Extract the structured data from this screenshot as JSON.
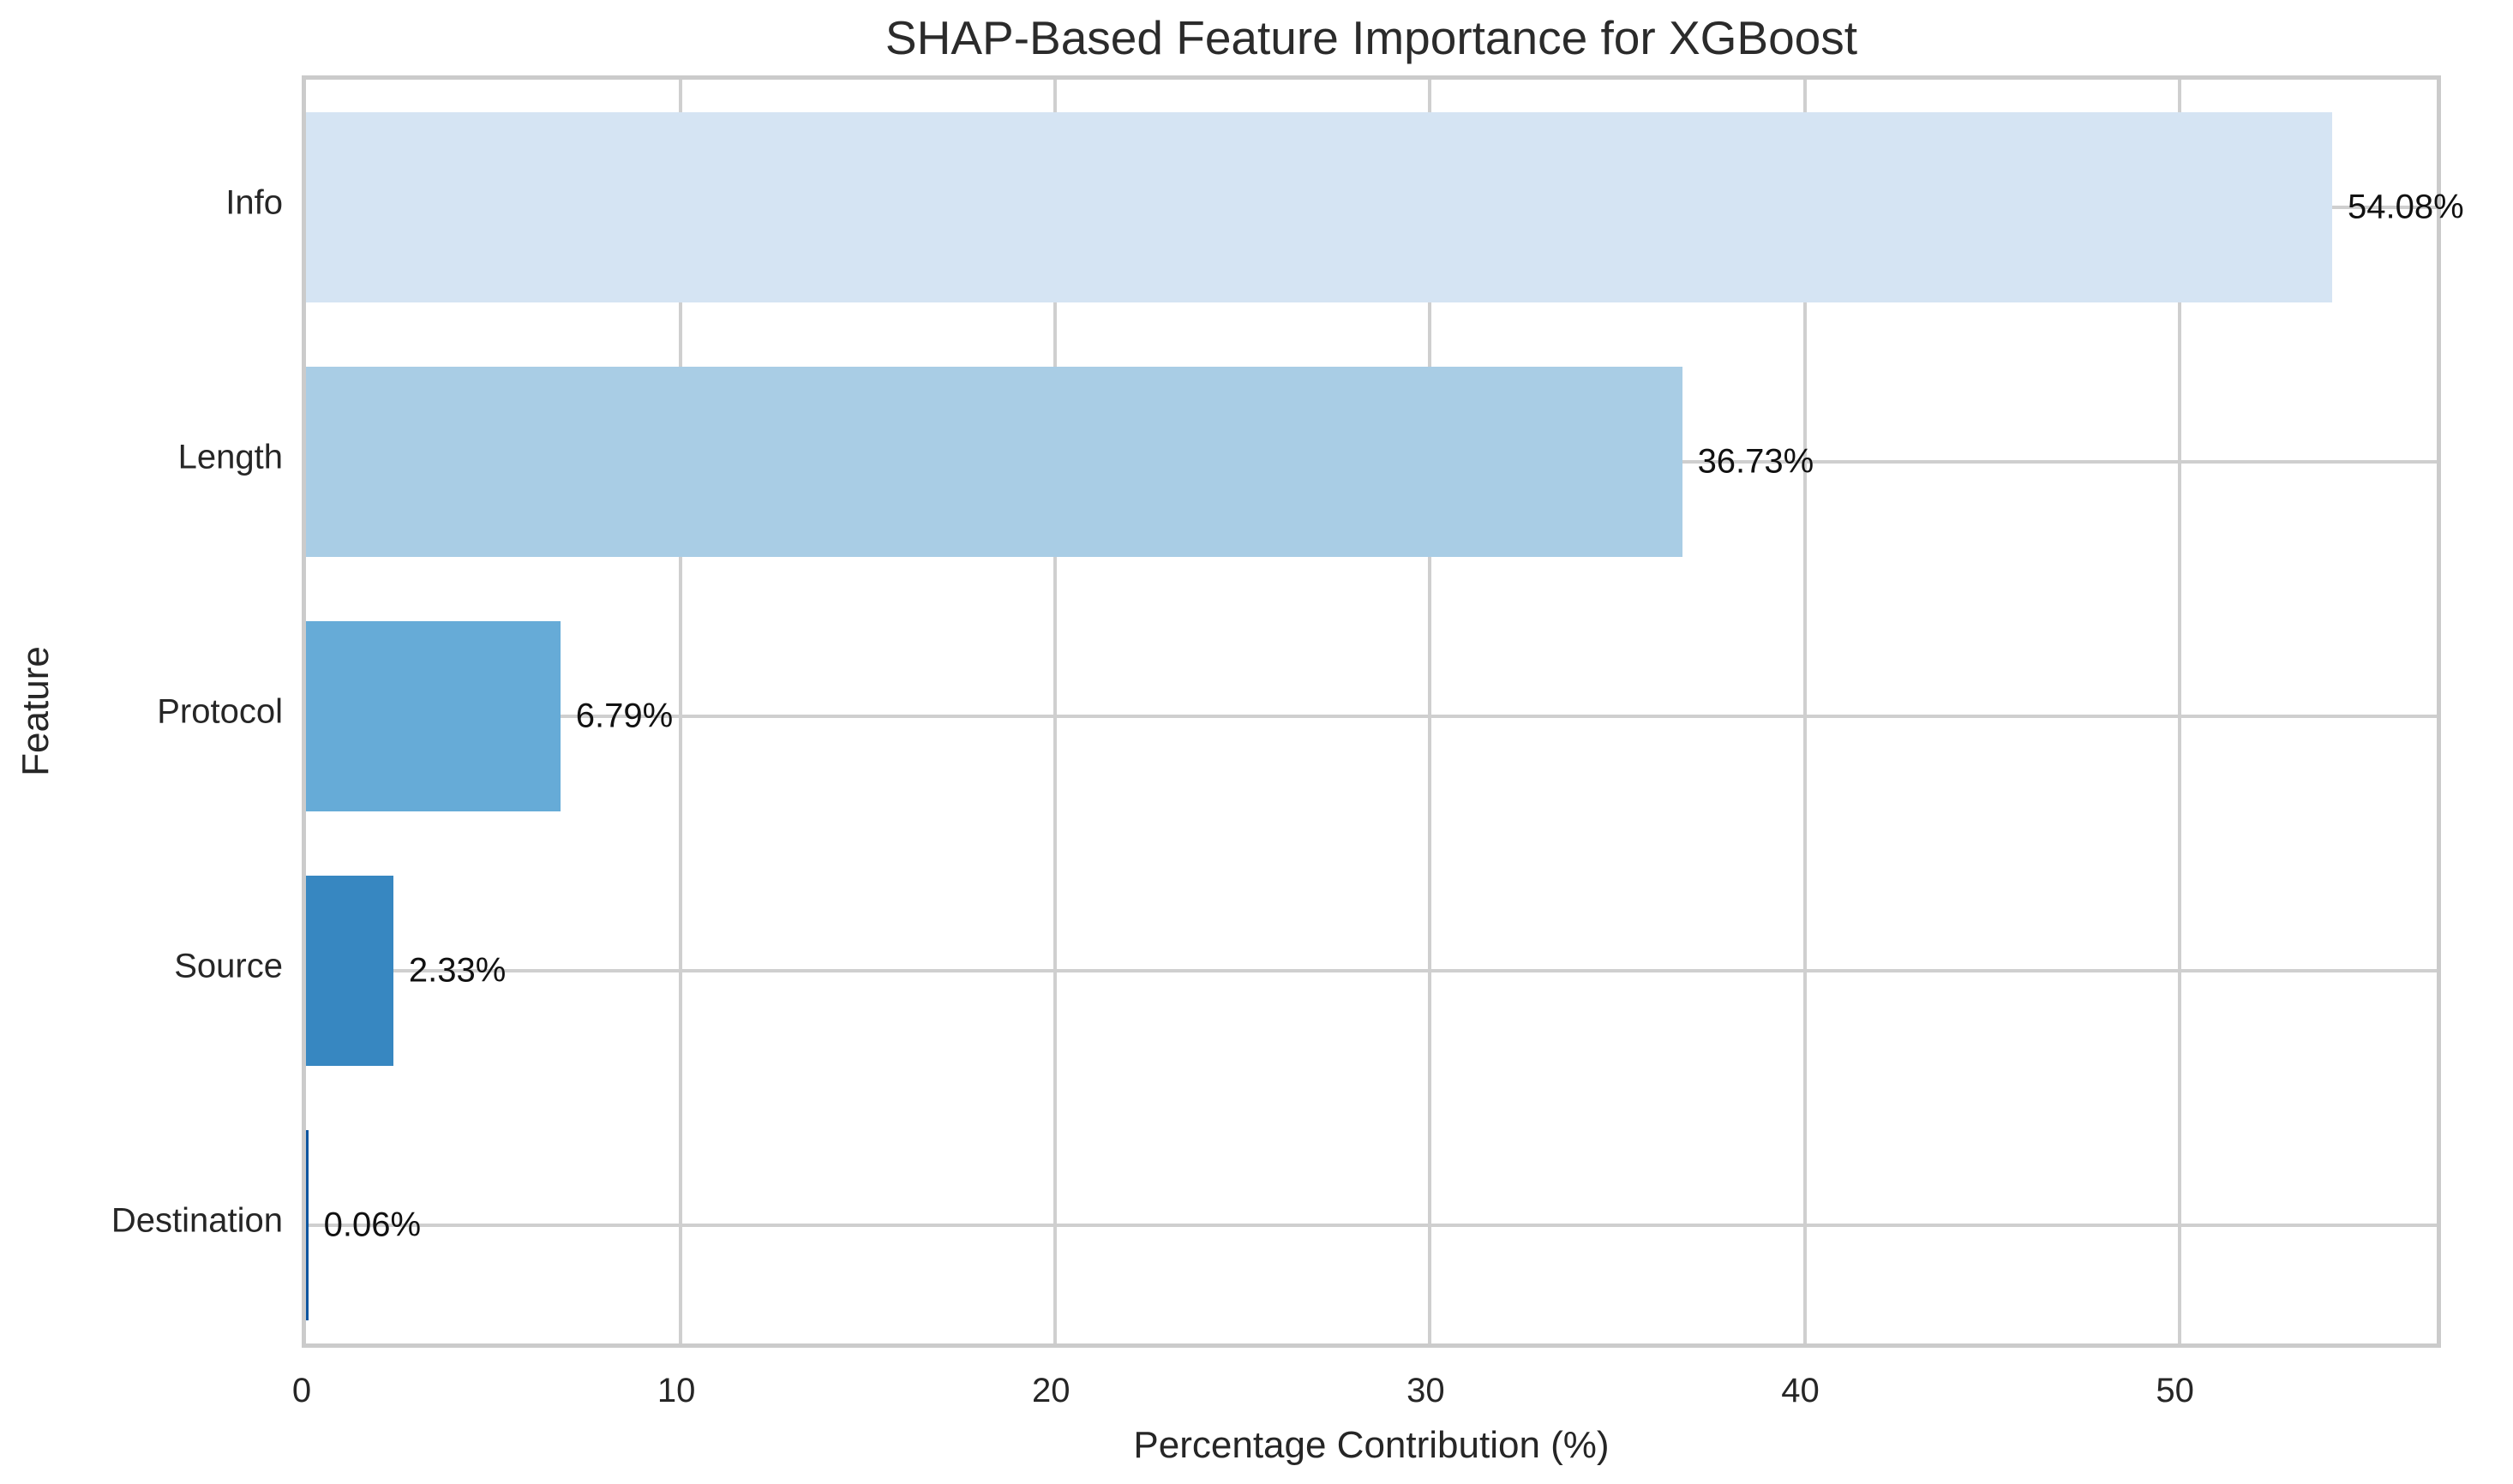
{
  "chart_data": {
    "type": "bar",
    "orientation": "horizontal",
    "title": "SHAP-Based Feature Importance for XGBoost",
    "xlabel": "Percentage Contribution (%)",
    "ylabel": "Feature",
    "categories": [
      "Info",
      "Length",
      "Protocol",
      "Source",
      "Destination"
    ],
    "values": [
      54.08,
      36.73,
      6.79,
      2.33,
      0.06
    ],
    "value_labels": [
      "54.08%",
      "36.73%",
      "6.79%",
      "2.33%",
      "0.06%"
    ],
    "bar_colors": [
      "#d5e4f3",
      "#a9cde5",
      "#66abd7",
      "#3787c1",
      "#0b559f"
    ],
    "xticks": [
      0,
      10,
      20,
      30,
      40,
      50
    ],
    "xlim": [
      0,
      57.1
    ],
    "grid": true,
    "grid_color": "#cfcfcf",
    "frame_color": "#cbcbcb",
    "background": "#ffffff",
    "text_color": "#262626",
    "legend": null
  }
}
